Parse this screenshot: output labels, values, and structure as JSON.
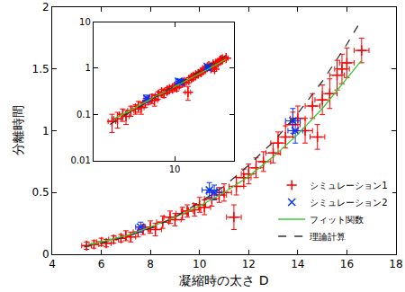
{
  "chart_data": [
    {
      "type": "scatter",
      "xlabel": "凝縮時の太さ D",
      "ylabel": "分離時間",
      "xlim": [
        4,
        18
      ],
      "xticks": [
        4,
        6,
        8,
        10,
        12,
        14,
        16,
        18
      ],
      "ylim": [
        0,
        2
      ],
      "yticks": [
        0,
        0.5,
        1,
        1.5,
        2
      ],
      "legend": "lower right",
      "grid": false,
      "series": [
        {
          "name": "シミュレーション1",
          "type": "scatter",
          "color": "#ff0000",
          "marker": "cross",
          "x": [
            5.4,
            5.7,
            6.0,
            6.2,
            6.5,
            6.8,
            7.0,
            7.2,
            7.5,
            7.7,
            8.0,
            8.2,
            8.5,
            8.8,
            9.0,
            9.3,
            9.5,
            9.8,
            10.0,
            10.2,
            10.5,
            10.8,
            11.0,
            11.4,
            11.5,
            11.8,
            12.0,
            12.3,
            12.6,
            13.0,
            13.2,
            13.5,
            13.8,
            14.0,
            14.3,
            14.6,
            14.8,
            15.0,
            15.3,
            15.6,
            15.8,
            16.0,
            16.6
          ],
          "values": [
            0.07,
            0.08,
            0.1,
            0.09,
            0.12,
            0.13,
            0.15,
            0.14,
            0.18,
            0.2,
            0.22,
            0.2,
            0.26,
            0.3,
            0.28,
            0.33,
            0.35,
            0.36,
            0.4,
            0.38,
            0.45,
            0.48,
            0.5,
            0.3,
            0.55,
            0.62,
            0.65,
            0.7,
            0.75,
            0.82,
            0.9,
            0.95,
            1.05,
            1.1,
            1.0,
            1.2,
            0.95,
            1.25,
            1.3,
            1.45,
            1.5,
            1.55,
            1.65
          ],
          "xerr": [
            0.2,
            0.2,
            0.2,
            0.2,
            0.2,
            0.2,
            0.2,
            0.2,
            0.2,
            0.2,
            0.25,
            0.25,
            0.25,
            0.25,
            0.25,
            0.25,
            0.25,
            0.25,
            0.25,
            0.25,
            0.3,
            0.3,
            0.3,
            0.3,
            0.3,
            0.3,
            0.3,
            0.3,
            0.3,
            0.3,
            0.3,
            0.3,
            0.3,
            0.3,
            0.3,
            0.3,
            0.3,
            0.3,
            0.3,
            0.3,
            0.3,
            0.3,
            0.3
          ],
          "yerr": [
            0.03,
            0.03,
            0.03,
            0.03,
            0.03,
            0.03,
            0.04,
            0.04,
            0.04,
            0.04,
            0.05,
            0.05,
            0.05,
            0.05,
            0.05,
            0.05,
            0.05,
            0.05,
            0.06,
            0.06,
            0.06,
            0.06,
            0.07,
            0.1,
            0.07,
            0.07,
            0.08,
            0.08,
            0.08,
            0.08,
            0.09,
            0.09,
            0.1,
            0.1,
            0.1,
            0.1,
            0.1,
            0.12,
            0.12,
            0.12,
            0.12,
            0.12,
            0.1
          ]
        },
        {
          "name": "シミュレーション2",
          "type": "scatter",
          "color": "#0033ff",
          "marker": "x",
          "x": [
            7.6,
            10.4,
            10.6,
            13.8,
            13.9
          ],
          "values": [
            0.22,
            0.52,
            0.5,
            1.08,
            1.0
          ],
          "xerr": [
            0.2,
            0.3,
            0.3,
            0.3,
            0.3
          ],
          "yerr": [
            0.04,
            0.06,
            0.06,
            0.1,
            0.1
          ]
        },
        {
          "name": "フィット関数",
          "type": "line",
          "color": "#33cc33",
          "line_style": "solid",
          "x": [
            5.5,
            6,
            7,
            8,
            9,
            10,
            11,
            12,
            13,
            14,
            15,
            16,
            16.6
          ],
          "values": [
            0.08,
            0.1,
            0.15,
            0.22,
            0.3,
            0.39,
            0.5,
            0.63,
            0.79,
            0.97,
            1.18,
            1.42,
            1.57
          ]
        },
        {
          "name": "理論計算",
          "type": "line",
          "color": "#333333",
          "line_style": "dashed",
          "x": [
            5.3,
            6,
            7,
            8,
            9,
            10,
            11,
            12,
            13,
            14,
            15,
            16,
            16.6
          ],
          "values": [
            0.06,
            0.09,
            0.14,
            0.21,
            0.3,
            0.42,
            0.55,
            0.72,
            0.91,
            1.14,
            1.4,
            1.7,
            1.9
          ]
        }
      ]
    },
    {
      "type": "scatter",
      "log": true,
      "xlim": [
        4.5,
        18
      ],
      "xticks": [
        10
      ],
      "ylim": [
        0.01,
        10
      ],
      "yticks": [
        0.01,
        0.1,
        1,
        10
      ],
      "grid": false,
      "series": [
        {
          "name": "シミュレーション1",
          "type": "scatter",
          "color": "#ff0000",
          "marker": "cross",
          "x": [
            5.4,
            5.7,
            6.0,
            6.2,
            6.5,
            6.8,
            7.0,
            7.2,
            7.5,
            7.7,
            8.0,
            8.2,
            8.5,
            8.8,
            9.0,
            9.3,
            9.5,
            9.8,
            10.0,
            10.2,
            10.5,
            10.8,
            11.0,
            11.4,
            11.5,
            11.8,
            12.0,
            12.3,
            12.6,
            13.0,
            13.2,
            13.5,
            13.8,
            14.0,
            14.3,
            14.6,
            14.8,
            15.0,
            15.3,
            15.6,
            15.8,
            16.0,
            16.6
          ],
          "values": [
            0.07,
            0.08,
            0.1,
            0.09,
            0.12,
            0.13,
            0.15,
            0.14,
            0.18,
            0.2,
            0.22,
            0.2,
            0.26,
            0.3,
            0.28,
            0.33,
            0.35,
            0.36,
            0.4,
            0.38,
            0.45,
            0.48,
            0.5,
            0.3,
            0.55,
            0.62,
            0.65,
            0.7,
            0.75,
            0.82,
            0.9,
            0.95,
            1.05,
            1.1,
            1.0,
            1.2,
            0.95,
            1.25,
            1.3,
            1.45,
            1.5,
            1.55,
            1.65
          ],
          "xerr": [
            0.2,
            0.2,
            0.2,
            0.2,
            0.2,
            0.2,
            0.2,
            0.2,
            0.2,
            0.2,
            0.25,
            0.25,
            0.25,
            0.25,
            0.25,
            0.25,
            0.25,
            0.25,
            0.25,
            0.25,
            0.3,
            0.3,
            0.3,
            0.3,
            0.3,
            0.3,
            0.3,
            0.3,
            0.3,
            0.3,
            0.3,
            0.3,
            0.3,
            0.3,
            0.3,
            0.3,
            0.3,
            0.3,
            0.3,
            0.3,
            0.3,
            0.3,
            0.3
          ],
          "yerr": [
            0.03,
            0.03,
            0.03,
            0.03,
            0.03,
            0.03,
            0.04,
            0.04,
            0.04,
            0.04,
            0.05,
            0.05,
            0.05,
            0.05,
            0.05,
            0.05,
            0.05,
            0.05,
            0.06,
            0.06,
            0.06,
            0.06,
            0.07,
            0.1,
            0.07,
            0.07,
            0.08,
            0.08,
            0.08,
            0.08,
            0.09,
            0.09,
            0.1,
            0.1,
            0.1,
            0.1,
            0.1,
            0.12,
            0.12,
            0.12,
            0.12,
            0.12,
            0.1
          ]
        },
        {
          "name": "シミュレーション2",
          "type": "scatter",
          "color": "#0033ff",
          "marker": "x",
          "x": [
            7.6,
            10.4,
            10.6,
            13.8,
            13.9
          ],
          "values": [
            0.22,
            0.52,
            0.5,
            1.08,
            1.0
          ],
          "xerr": [
            0.2,
            0.3,
            0.3,
            0.3,
            0.3
          ],
          "yerr": [
            0.04,
            0.06,
            0.06,
            0.1,
            0.1
          ]
        },
        {
          "name": "フィット関数",
          "type": "line",
          "color": "#33cc33",
          "line_style": "solid",
          "x": [
            5.5,
            6,
            7,
            8,
            9,
            10,
            11,
            12,
            13,
            14,
            15,
            16,
            16.6
          ],
          "values": [
            0.08,
            0.1,
            0.15,
            0.22,
            0.3,
            0.39,
            0.5,
            0.63,
            0.79,
            0.97,
            1.18,
            1.42,
            1.57
          ]
        },
        {
          "name": "理論計算",
          "type": "line",
          "color": "#333333",
          "line_style": "dashed",
          "x": [
            5.3,
            6,
            7,
            8,
            9,
            10,
            11,
            12,
            13,
            14,
            15,
            16,
            16.6
          ],
          "values": [
            0.06,
            0.09,
            0.14,
            0.21,
            0.3,
            0.42,
            0.55,
            0.72,
            0.91,
            1.14,
            1.4,
            1.7,
            1.9
          ]
        }
      ]
    }
  ]
}
